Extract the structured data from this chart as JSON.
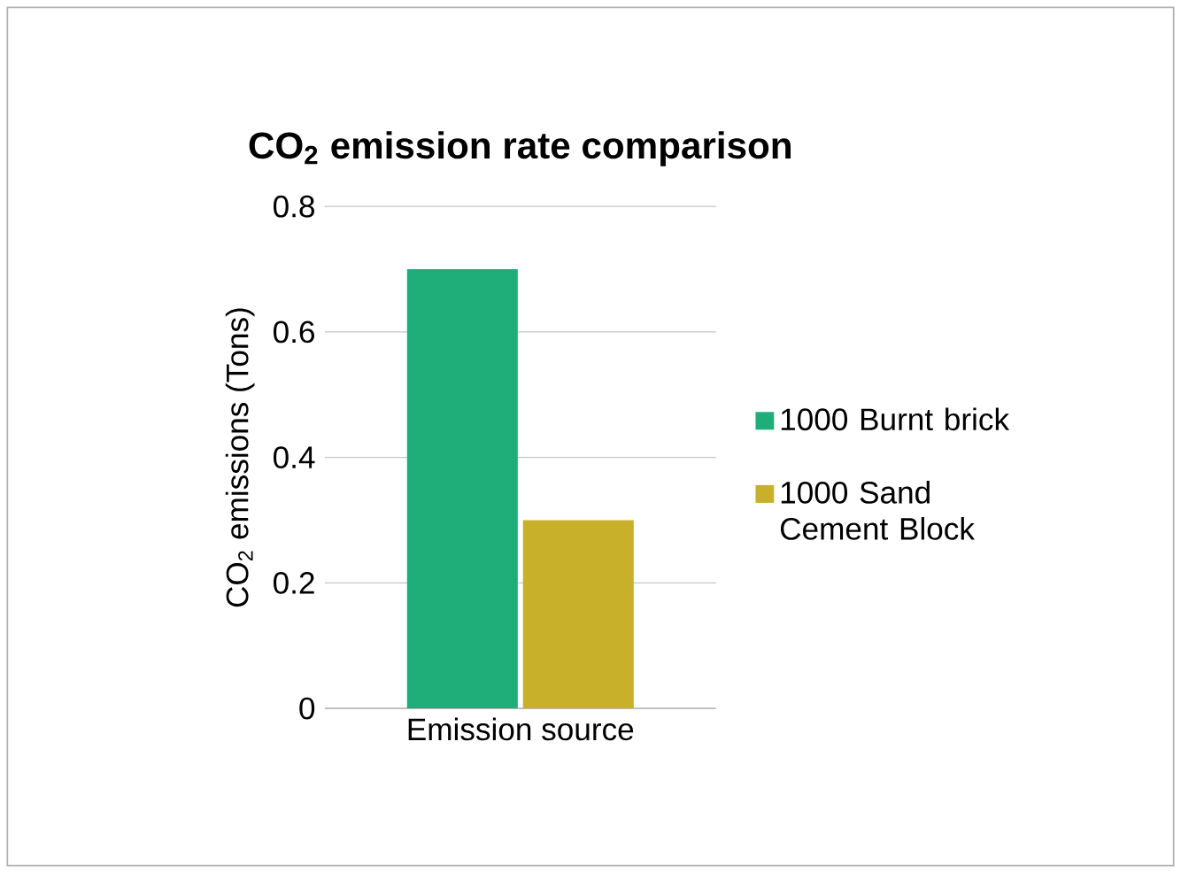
{
  "chart_data": {
    "type": "bar",
    "title": "CO$_{2}$ emission rate comparison",
    "ylabel": "CO$_{2}$ emissions (Tons)",
    "categories": [
      "Emission source"
    ],
    "series": [
      {
        "name": "1000 Burnt brick",
        "color": "#1fae7a",
        "values": [
          0.7
        ]
      },
      {
        "name": "1000 Sand Cement Block",
        "color": "#c9b02a",
        "values": [
          0.3
        ]
      }
    ],
    "ylim": [
      0,
      0.8
    ],
    "yticks": [
      0,
      0.2,
      0.4,
      0.6,
      0.8
    ],
    "grid": "y",
    "legend": "right"
  }
}
